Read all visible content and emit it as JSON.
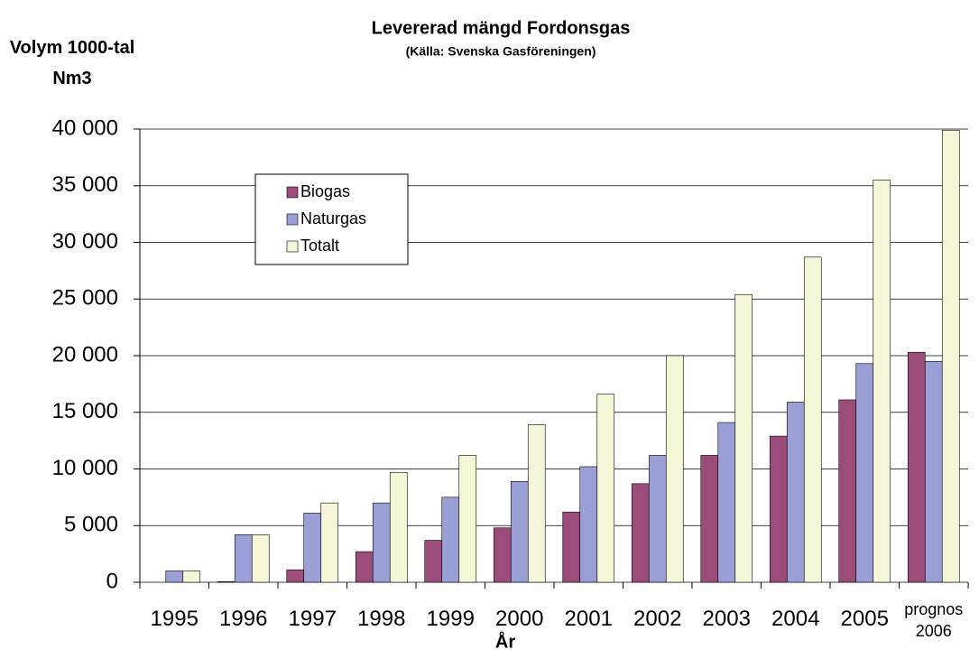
{
  "chart_data": {
    "type": "bar",
    "title": "Levererad mängd Fordonsgas",
    "subtitle": "(Källa: Svenska Gasföreningen)",
    "ylabel": "Volym 1000-tal Nm3",
    "xlabel": "År",
    "categories": [
      "1995",
      "1996",
      "1997",
      "1998",
      "1999",
      "2000",
      "2001",
      "2002",
      "2003",
      "2004",
      "2005",
      "prognos 2006"
    ],
    "series": [
      {
        "name": "Biogas",
        "color": "#9c4c7a",
        "values": [
          0,
          50,
          1100,
          2700,
          3700,
          4800,
          6200,
          8700,
          11200,
          12900,
          16100,
          20300
        ]
      },
      {
        "name": "Naturgas",
        "color": "#9a9fd6",
        "values": [
          1000,
          4200,
          6100,
          7000,
          7500,
          8900,
          10200,
          11200,
          14100,
          15900,
          19300,
          19500
        ]
      },
      {
        "name": "Totalt",
        "color": "#f5f5d8",
        "values": [
          1000,
          4200,
          7000,
          9700,
          11200,
          13900,
          16600,
          20000,
          25400,
          28700,
          35500,
          39900
        ]
      }
    ],
    "ylim": [
      0,
      40000
    ],
    "yticks": [
      0,
      {
        "value": 5000,
        "label": "5 000"
      },
      {
        "value": 10000,
        "label": "10 000"
      },
      {
        "value": 15000,
        "label": "15 000"
      },
      {
        "value": 20000,
        "label": "20 000"
      },
      {
        "value": 25000,
        "label": "25 000"
      },
      {
        "value": 30000,
        "label": "30 000"
      },
      {
        "value": 35000,
        "label": "35 000"
      },
      {
        "value": 40000,
        "label": "40 000"
      }
    ],
    "grid": true,
    "legend": "upper left"
  }
}
